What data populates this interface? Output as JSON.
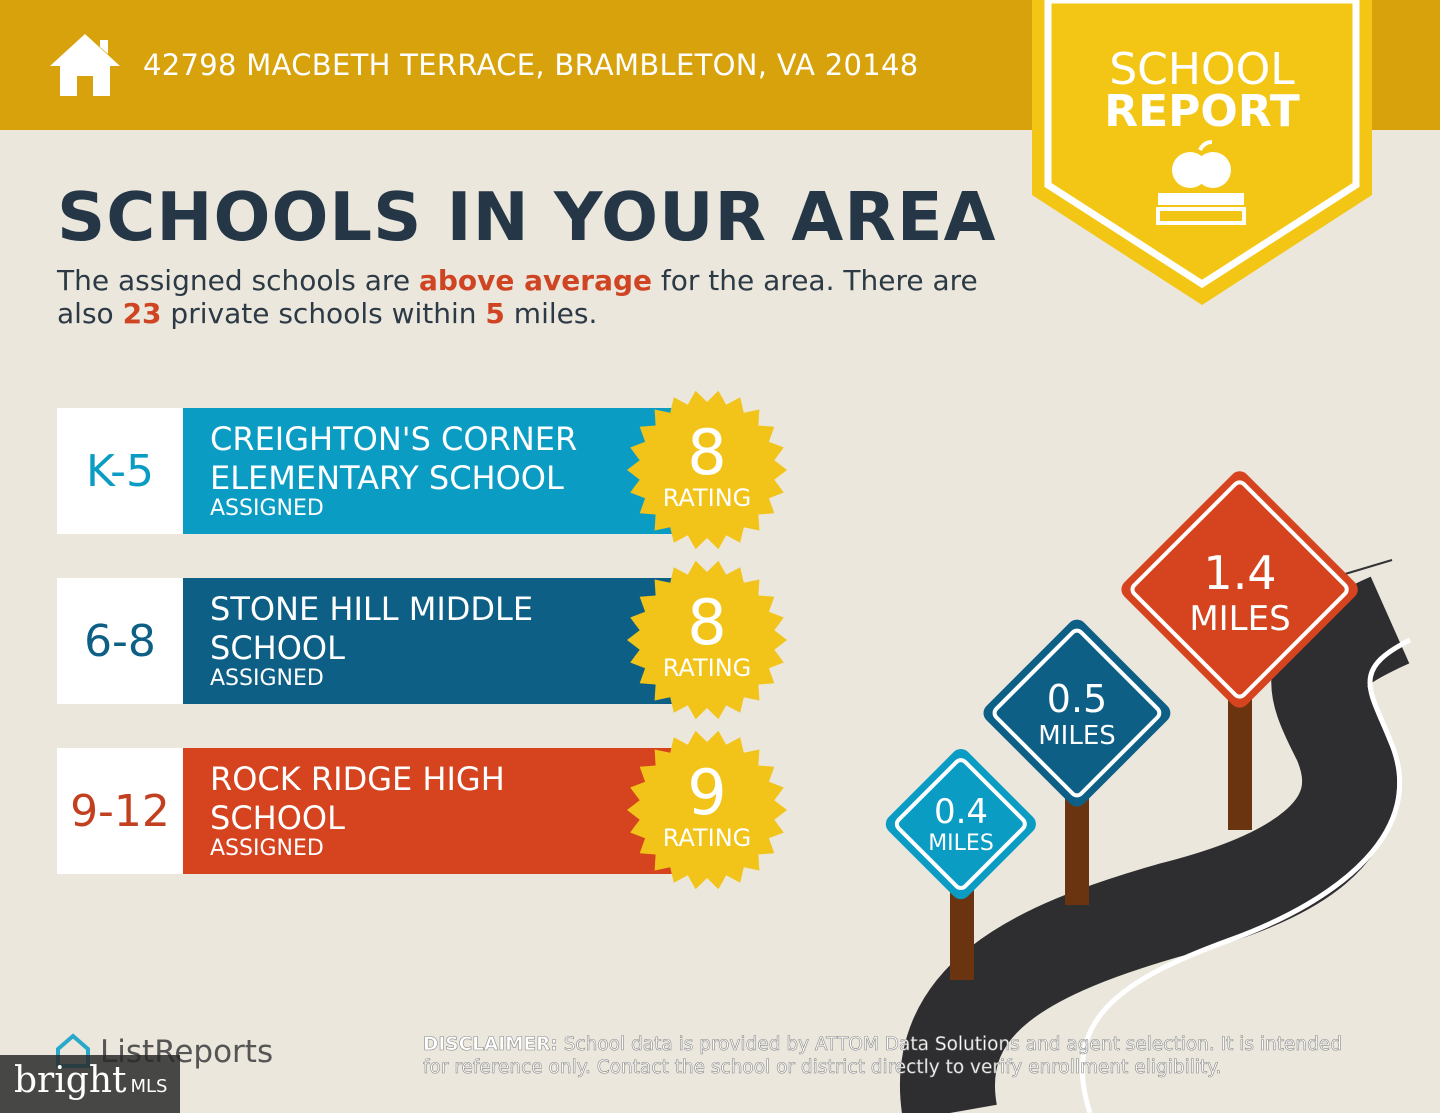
{
  "header": {
    "address": "42798 MACBETH TERRACE, BRAMBLETON, VA 20148",
    "badge_top": "SCHOOL",
    "badge_bottom": "REPORT"
  },
  "title": "SCHOOLS IN YOUR AREA",
  "intro": [
    "The assigned schools are ",
    "above average",
    " for the area. There are also ",
    "23",
    " private schools within ",
    "5",
    " miles."
  ],
  "schools": [
    {
      "grade": "K-5",
      "name_lines": [
        "CREIGHTON'S CORNER",
        "ELEMENTARY SCHOOL"
      ],
      "status": "ASSIGNED",
      "rating": "8",
      "rating_label": "RATING"
    },
    {
      "grade": "6-8",
      "name_lines": [
        "STONE HILL MIDDLE",
        "SCHOOL"
      ],
      "status": "ASSIGNED",
      "rating": "8",
      "rating_label": "RATING"
    },
    {
      "grade": "9-12",
      "name_lines": [
        "ROCK RIDGE HIGH",
        "SCHOOL"
      ],
      "status": "ASSIGNED",
      "rating": "9",
      "rating_label": "RATING"
    }
  ],
  "distances": [
    {
      "value": "1.4",
      "unit": "MILES"
    },
    {
      "value": "0.5",
      "unit": "MILES"
    },
    {
      "value": "0.4",
      "unit": "MILES"
    }
  ],
  "footer": {
    "brand": "ListReports",
    "disclaimer_label": "DISCLAIMER:",
    "disclaimer": "School data is provided by ATTOM Data Solutions and agent selection. It is intended for reference only. Contact the school or district directly to verify enrollment eligibility.",
    "watermark": "bright",
    "watermark_suffix": "MLS"
  }
}
